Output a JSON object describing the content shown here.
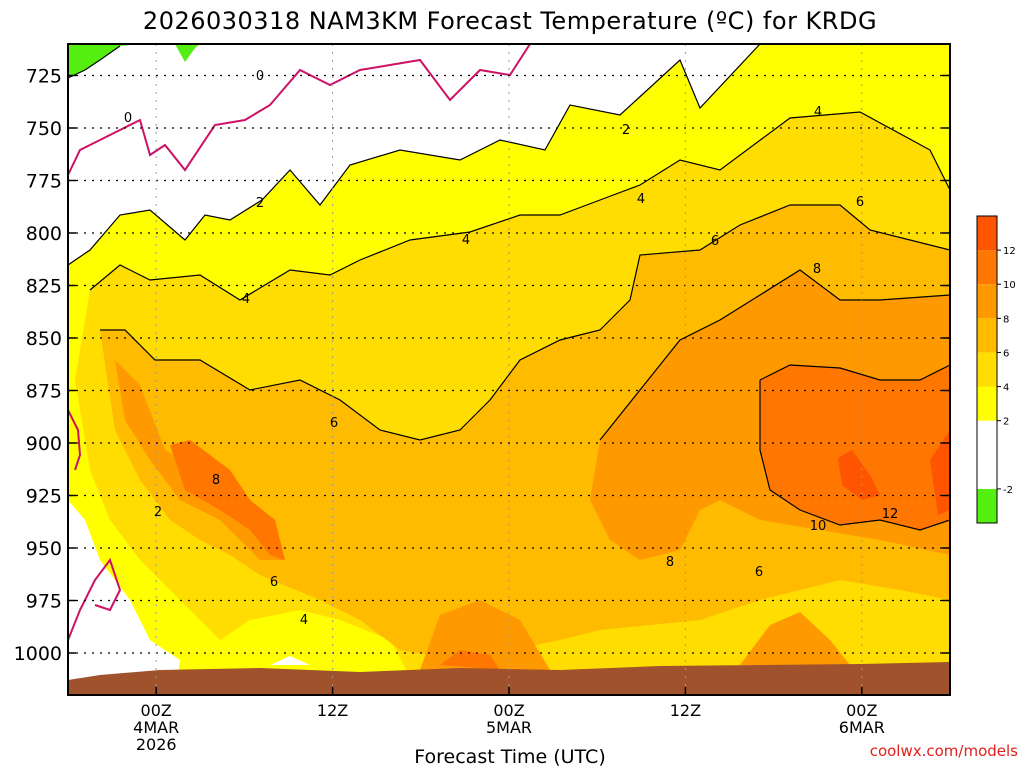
{
  "chart_data": {
    "type": "heatmap",
    "title": "2026030318 NAM3KM Forecast Temperature (ºC) for KRDG",
    "xlabel": "Forecast Time (UTC)",
    "ylabel": "",
    "credit": "coolwx.com/models",
    "y_ticks": [
      725,
      750,
      775,
      800,
      825,
      850,
      875,
      900,
      925,
      950,
      975,
      1000
    ],
    "y_range_hPa": [
      710,
      1020
    ],
    "x_range_hours": [
      -6,
      54
    ],
    "x_ticks": [
      {
        "hour": 0,
        "lines": [
          "00Z",
          "4MAR",
          "2026"
        ]
      },
      {
        "hour": 12,
        "lines": [
          "12Z"
        ]
      },
      {
        "hour": 24,
        "lines": [
          "00Z",
          "5MAR"
        ]
      },
      {
        "hour": 36,
        "lines": [
          "12Z"
        ]
      },
      {
        "hour": 48,
        "lines": [
          "00Z",
          "6MAR"
        ]
      }
    ],
    "levels": [
      -4,
      -2,
      0,
      2,
      4,
      6,
      8,
      10,
      12,
      14
    ],
    "colors": [
      "#55ee11",
      "#ffffff",
      "#ffffff",
      "#ffff00",
      "#ffdd00",
      "#ffbb00",
      "#ff9900",
      "#ff7700",
      "#ff5500"
    ],
    "colorbar_ticks": [
      -2,
      2,
      4,
      6,
      8,
      10,
      12
    ],
    "contour_labels": [
      "0",
      "0",
      "2",
      "2",
      "2",
      "4",
      "4",
      "4",
      "4",
      "4",
      "6",
      "6",
      "6",
      "6",
      "6",
      "8",
      "8",
      "8",
      "10",
      "12"
    ],
    "temperature_profile": {
      "hours": [
        -6,
        0,
        6,
        12,
        18,
        24,
        30,
        36,
        42,
        48,
        54
      ],
      "pressure": [
        725,
        750,
        775,
        800,
        825,
        850,
        875,
        900,
        925,
        950,
        975,
        1000
      ],
      "values": [
        [
          -2,
          -1,
          0,
          1,
          1,
          2,
          3,
          2,
          3,
          3,
          2
        ],
        [
          0,
          1,
          1,
          2,
          2,
          3,
          3,
          3,
          4,
          4,
          3
        ],
        [
          1,
          2,
          2,
          3,
          3,
          3,
          4,
          4,
          5,
          5,
          5
        ],
        [
          2,
          3,
          3,
          4,
          4,
          4,
          5,
          5,
          6,
          6,
          6
        ],
        [
          3,
          4,
          4,
          4,
          5,
          5,
          5,
          6,
          7,
          8,
          8
        ],
        [
          4,
          5,
          5,
          5,
          5,
          6,
          6,
          7,
          8,
          9,
          9
        ],
        [
          5,
          6,
          6,
          6,
          6,
          6,
          7,
          8,
          10,
          10,
          10
        ],
        [
          5,
          8,
          7,
          6,
          7,
          7,
          7,
          8,
          11,
          11,
          12
        ],
        [
          4,
          7,
          8,
          7,
          7,
          7,
          7,
          8,
          10,
          11,
          12
        ],
        [
          3,
          5,
          6,
          6,
          7,
          7,
          6,
          7,
          8,
          9,
          9
        ],
        [
          1,
          3,
          5,
          5,
          6,
          7,
          6,
          6,
          7,
          7,
          7
        ],
        [
          0,
          2,
          4,
          4,
          5,
          8,
          6,
          5,
          6,
          7,
          6
        ]
      ]
    },
    "ground_color": "#a0522d"
  }
}
